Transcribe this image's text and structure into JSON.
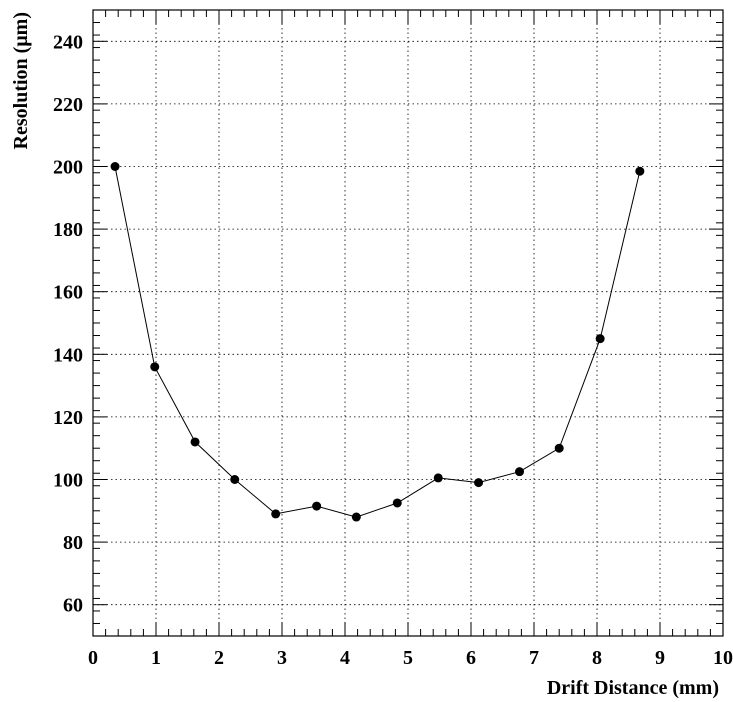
{
  "chart_data": {
    "type": "line",
    "title": "",
    "xlabel": "Drift Distance (mm)",
    "ylabel": "Resolution   (μm)",
    "xlim": [
      0,
      10
    ],
    "ylim": [
      50,
      250
    ],
    "x_ticks": [
      0,
      1,
      2,
      3,
      4,
      5,
      6,
      7,
      8,
      9,
      10
    ],
    "y_ticks": [
      60,
      80,
      100,
      120,
      140,
      160,
      180,
      200,
      220,
      240
    ],
    "grid": true,
    "legend": "none",
    "series": [
      {
        "x": [
          0.35,
          0.98,
          1.62,
          2.25,
          2.9,
          3.55,
          4.18,
          4.83,
          5.48,
          6.12,
          6.77,
          7.4,
          8.05,
          8.68
        ],
        "y": [
          200,
          136,
          112,
          100,
          89,
          91.5,
          88,
          92.5,
          100.5,
          99,
          102.5,
          110,
          145,
          198.5
        ]
      }
    ]
  }
}
